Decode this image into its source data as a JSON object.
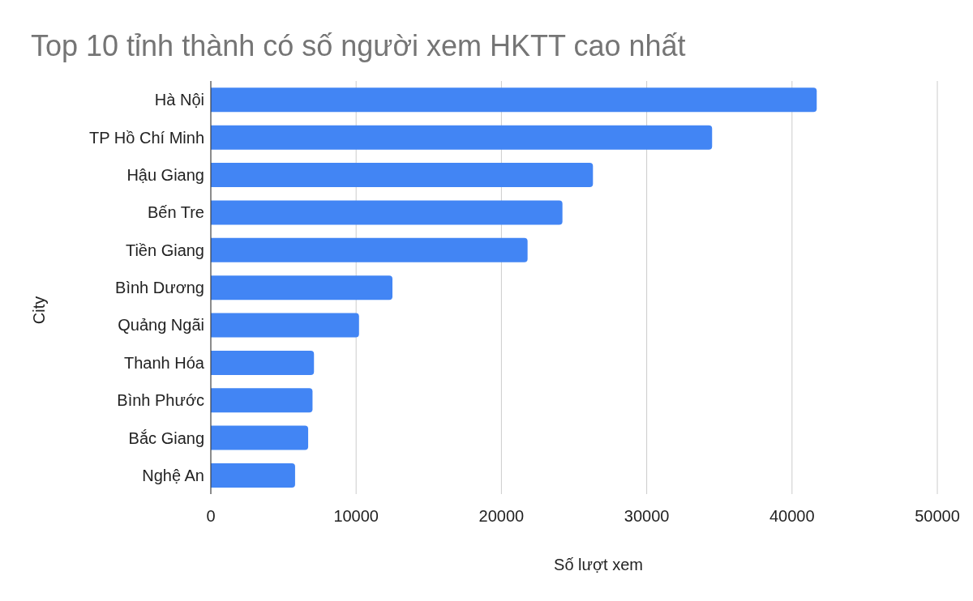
{
  "chart_data": {
    "type": "bar",
    "orientation": "horizontal",
    "title": "Top 10 tỉnh thành có số người xem HKTT cao nhất",
    "xlabel": "Số lượt xem",
    "ylabel": "City",
    "categories": [
      "Hà Nội",
      "TP Hồ Chí Minh",
      "Hậu Giang",
      "Bến Tre",
      "Tiền Giang",
      "Bình Dương",
      "Quảng Ngãi",
      "Thanh Hóa",
      "Bình Phước",
      "Bắc Giang",
      "Nghệ An"
    ],
    "values": [
      41700,
      34500,
      26300,
      24200,
      21800,
      12500,
      10200,
      7100,
      7000,
      6700,
      5800
    ],
    "color": "#4285f4",
    "xlim": [
      0,
      50000
    ],
    "xticks": [
      0,
      10000,
      20000,
      30000,
      40000,
      50000
    ],
    "grid": "x",
    "legend": false
  }
}
